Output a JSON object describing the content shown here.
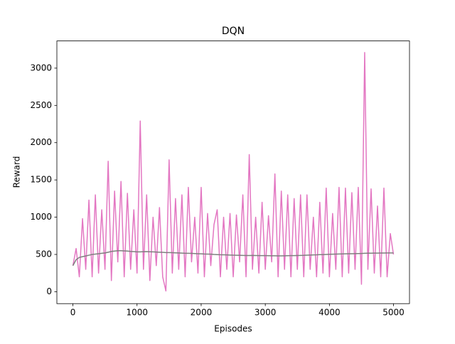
{
  "chart_data": {
    "type": "line",
    "title": "DQN",
    "xlabel": "Episodes",
    "ylabel": "Reward",
    "x": [
      0,
      50,
      100,
      150,
      200,
      250,
      300,
      350,
      400,
      450,
      500,
      550,
      600,
      650,
      700,
      750,
      800,
      850,
      900,
      950,
      1000,
      1050,
      1100,
      1150,
      1200,
      1250,
      1300,
      1350,
      1400,
      1450,
      1500,
      1550,
      1600,
      1650,
      1700,
      1750,
      1800,
      1850,
      1900,
      1950,
      2000,
      2050,
      2100,
      2150,
      2200,
      2250,
      2300,
      2350,
      2400,
      2450,
      2500,
      2550,
      2600,
      2650,
      2700,
      2750,
      2800,
      2850,
      2900,
      2950,
      3000,
      3050,
      3100,
      3150,
      3200,
      3250,
      3300,
      3350,
      3400,
      3450,
      3500,
      3550,
      3600,
      3650,
      3700,
      3750,
      3800,
      3850,
      3900,
      3950,
      4000,
      4050,
      4100,
      4150,
      4200,
      4250,
      4300,
      4350,
      4400,
      4450,
      4500,
      4550,
      4600,
      4650,
      4700,
      4750,
      4800,
      4850,
      4900,
      4950,
      4999
    ],
    "series": [
      {
        "color": "#e377c2",
        "values": [
          350,
          580,
          200,
          980,
          300,
          1230,
          200,
          1300,
          250,
          1100,
          300,
          1750,
          150,
          1350,
          400,
          1480,
          200,
          1320,
          300,
          1100,
          250,
          2290,
          300,
          1300,
          150,
          1000,
          350,
          1130,
          200,
          10,
          1770,
          250,
          1250,
          300,
          1300,
          200,
          1400,
          400,
          1000,
          250,
          1400,
          200,
          1050,
          350,
          900,
          1100,
          200,
          1000,
          300,
          1050,
          200,
          1030,
          400,
          1300,
          200,
          1840,
          300,
          1000,
          250,
          1200,
          300,
          1020,
          400,
          1580,
          200,
          1350,
          300,
          1300,
          200,
          1250,
          300,
          1300,
          200,
          1300,
          300,
          1000,
          200,
          1200,
          250,
          1390,
          200,
          1050,
          300,
          1400,
          200,
          1390,
          250,
          1330,
          300,
          1400,
          100,
          3210,
          300,
          1380,
          250,
          1150,
          200,
          1390,
          200,
          780,
          500
        ]
      },
      {
        "color": "#7f7f7f",
        "values": [
          350,
          430,
          460,
          470,
          480,
          490,
          500,
          505,
          510,
          515,
          520,
          530,
          540,
          545,
          550,
          550,
          548,
          545,
          540,
          538,
          535,
          535,
          537,
          538,
          536,
          534,
          532,
          530,
          528,
          525,
          525,
          524,
          522,
          520,
          518,
          516,
          515,
          514,
          512,
          510,
          508,
          506,
          505,
          503,
          500,
          498,
          496,
          495,
          494,
          492,
          490,
          489,
          488,
          487,
          486,
          486,
          487,
          486,
          485,
          484,
          484,
          483,
          482,
          482,
          481,
          481,
          482,
          483,
          484,
          485,
          486,
          487,
          488,
          490,
          492,
          494,
          495,
          497,
          498,
          500,
          502,
          504,
          505,
          506,
          507,
          508,
          509,
          510,
          511,
          512,
          513,
          516,
          517,
          517,
          518,
          518,
          519,
          519,
          520,
          520,
          520
        ]
      }
    ],
    "xlim": [
      -250,
      5249
    ],
    "ylim": [
      -160,
      3365
    ],
    "xticks": [
      0,
      1000,
      2000,
      3000,
      4000,
      5000
    ],
    "yticks": [
      0,
      500,
      1000,
      1500,
      2000,
      2500,
      3000
    ]
  }
}
